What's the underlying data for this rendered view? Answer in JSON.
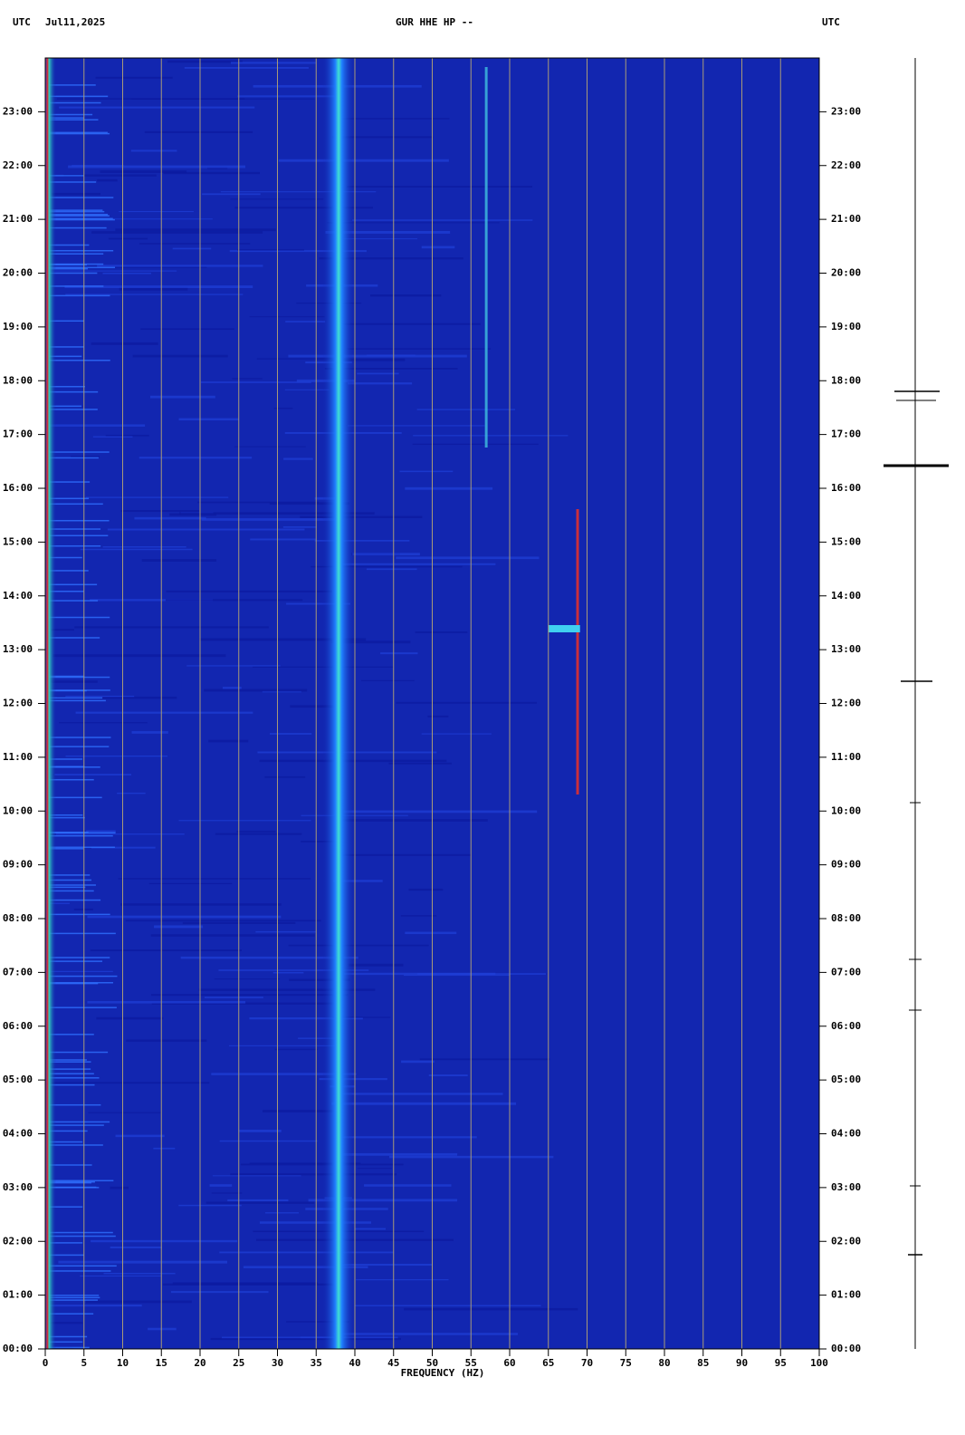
{
  "chart_data": {
    "type": "spectrogram",
    "title": "GUR HHE HP --",
    "date": "Jul11,2025",
    "timezone_label": "UTC",
    "x_label": "FREQUENCY (HZ)",
    "xlim": [
      0,
      100
    ],
    "xticks": [
      0,
      5,
      10,
      15,
      20,
      25,
      30,
      35,
      40,
      45,
      50,
      55,
      60,
      65,
      70,
      75,
      80,
      85,
      90,
      95,
      100
    ],
    "ylim": [
      0,
      24
    ],
    "yticks": [
      {
        "value": 0,
        "label": "00:00"
      },
      {
        "value": 1,
        "label": "01:00"
      },
      {
        "value": 2,
        "label": "02:00"
      },
      {
        "value": 3,
        "label": "03:00"
      },
      {
        "value": 4,
        "label": "04:00"
      },
      {
        "value": 5,
        "label": "05:00"
      },
      {
        "value": 6,
        "label": "06:00"
      },
      {
        "value": 7,
        "label": "07:00"
      },
      {
        "value": 8,
        "label": "08:00"
      },
      {
        "value": 9,
        "label": "09:00"
      },
      {
        "value": 10,
        "label": "10:00"
      },
      {
        "value": 11,
        "label": "11:00"
      },
      {
        "value": 12,
        "label": "12:00"
      },
      {
        "value": 13,
        "label": "13:00"
      },
      {
        "value": 14,
        "label": "14:00"
      },
      {
        "value": 15,
        "label": "15:00"
      },
      {
        "value": 16,
        "label": "16:00"
      },
      {
        "value": 17,
        "label": "17:00"
      },
      {
        "value": 18,
        "label": "18:00"
      },
      {
        "value": 19,
        "label": "19:00"
      },
      {
        "value": 20,
        "label": "20:00"
      },
      {
        "value": 21,
        "label": "21:00"
      },
      {
        "value": 22,
        "label": "22:00"
      },
      {
        "value": 23,
        "label": "23:00"
      }
    ],
    "grid": true,
    "grid_color": "#a89a78",
    "background_color": "#1226b0"
  }
}
